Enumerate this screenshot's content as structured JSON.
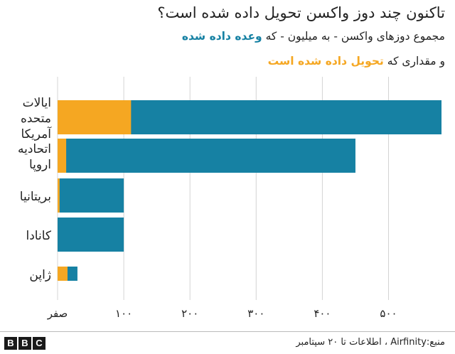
{
  "colors": {
    "promised": "#1681a3",
    "delivered": "#f5a722",
    "grid": "#d4d4d4",
    "text": "#222222"
  },
  "header": {
    "title": "تاکنون چند دوز واکسن تحویل داده شده است؟",
    "subtitle_part1": "مجموع دوزهای واکسن - به میلیون - که ",
    "subtitle_promised": "وعده داده شده",
    "subtitle_part2": "و مقداری که ",
    "subtitle_delivered": "تحویل داده شده است"
  },
  "footer": {
    "logo": [
      "B",
      "B",
      "C"
    ],
    "source": "منبع:Airfinity ، اطلاعات تا ۲۰ سپتامبر"
  },
  "chart_data": {
    "type": "bar",
    "orientation": "horizontal",
    "stacked": false,
    "title": "تاکنون چند دوز واکسن تحویل داده شده است؟",
    "xlabel": "",
    "ylabel": "",
    "xlim": [
      0,
      580
    ],
    "ticks": [
      0,
      100,
      200,
      300,
      400,
      500
    ],
    "tick_labels": [
      "صفر",
      "۱۰۰",
      "۲۰۰",
      "۳۰۰",
      "۴۰۰",
      "۵۰۰"
    ],
    "grid": true,
    "categories": [
      [
        "ایالات",
        "متحده",
        "آمریکا"
      ],
      [
        "اتحادیه",
        "اروپا"
      ],
      [
        "بریتانیا"
      ],
      [
        "کانادا"
      ],
      [
        "ژاپن"
      ]
    ],
    "series": [
      {
        "name": "وعده داده شده",
        "values": [
          580,
          450,
          100,
          100,
          30
        ]
      },
      {
        "name": "تحویل داده شده",
        "values": [
          111,
          13,
          3,
          0,
          15
        ]
      }
    ]
  }
}
